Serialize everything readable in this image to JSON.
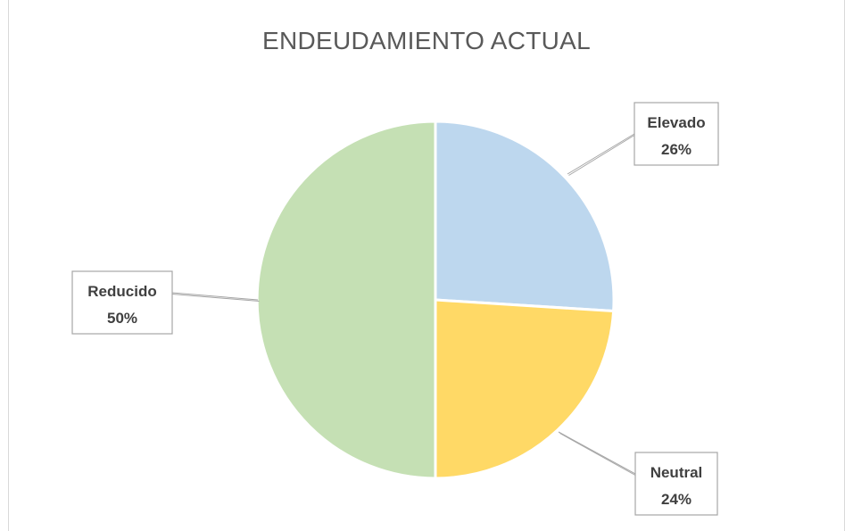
{
  "chart_data": {
    "type": "pie",
    "title": "ENDEUDAMIENTO ACTUAL",
    "slices": [
      {
        "label": "Elevado",
        "value": 26,
        "value_label": "26%",
        "color": "#bdd7ee"
      },
      {
        "label": "Neutral",
        "value": 24,
        "value_label": "24%",
        "color": "#ffd966"
      },
      {
        "label": "Reducido",
        "value": 50,
        "value_label": "50%",
        "color": "#c5e0b4"
      }
    ],
    "start_angle": "12 o'clock",
    "direction": "clockwise",
    "legend": "none",
    "data_labels": "callouts"
  }
}
